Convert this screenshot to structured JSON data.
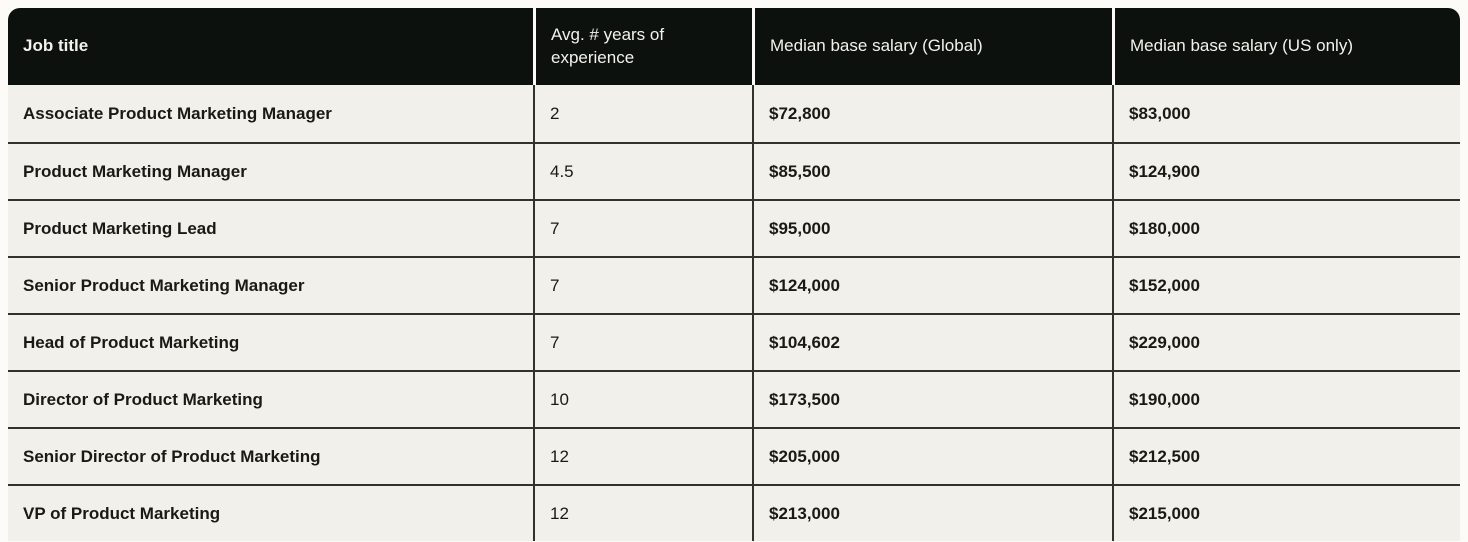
{
  "table": {
    "header": {
      "job_title": "Job title",
      "experience": "Avg. # years of experience",
      "salary_global": "Median base salary (Global)",
      "salary_us": "Median base salary (US only)"
    },
    "rows": [
      {
        "title": "Associate Product Marketing Manager",
        "experience": "2",
        "salary_global": "$72,800",
        "salary_us": "$83,000"
      },
      {
        "title": "Product Marketing Manager",
        "experience": "4.5",
        "salary_global": "$85,500",
        "salary_us": "$124,900"
      },
      {
        "title": "Product Marketing Lead",
        "experience": "7",
        "salary_global": "$95,000",
        "salary_us": "$180,000"
      },
      {
        "title": "Senior Product Marketing Manager",
        "experience": "7",
        "salary_global": "$124,000",
        "salary_us": "$152,000"
      },
      {
        "title": "Head of Product Marketing",
        "experience": "7",
        "salary_global": "$104,602",
        "salary_us": "$229,000"
      },
      {
        "title": "Director of Product Marketing",
        "experience": "10",
        "salary_global": "$173,500",
        "salary_us": "$190,000"
      },
      {
        "title": "Senior Director of Product Marketing",
        "experience": "12",
        "salary_global": "$205,000",
        "salary_us": "$212,500"
      },
      {
        "title": "VP of Product Marketing",
        "experience": "12",
        "salary_global": "$213,000",
        "salary_us": "$215,000"
      }
    ]
  },
  "chart_data": {
    "type": "table",
    "columns": [
      "Job title",
      "Avg. # years of experience",
      "Median base salary (Global)",
      "Median base salary (US only)"
    ],
    "rows": [
      [
        "Associate Product Marketing Manager",
        2,
        "$72,800",
        "$83,000"
      ],
      [
        "Product Marketing Manager",
        4.5,
        "$85,500",
        "$124,900"
      ],
      [
        "Product Marketing Lead",
        7,
        "$95,000",
        "$180,000"
      ],
      [
        "Senior Product Marketing Manager",
        7,
        "$124,000",
        "$152,000"
      ],
      [
        "Head of Product Marketing",
        7,
        "$104,602",
        "$229,000"
      ],
      [
        "Director of Product Marketing",
        10,
        "$173,500",
        "$190,000"
      ],
      [
        "Senior Director of Product Marketing",
        12,
        "$205,000",
        "$212,500"
      ],
      [
        "VP of Product Marketing",
        12,
        "$213,000",
        "$215,000"
      ]
    ]
  },
  "colors": {
    "header_bg": "#0c110d",
    "header_text": "#f3f2ec",
    "body_bg": "#f1f0ea",
    "body_text": "#191916",
    "divider": "#32322c",
    "page_bg": "#fcfbf8"
  }
}
